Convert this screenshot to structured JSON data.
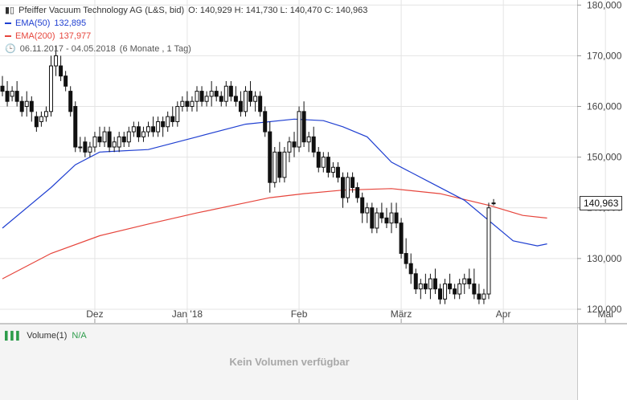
{
  "header": {
    "title": "Pfeiffer Vacuum Technology AG (L&S, bid)",
    "ohlc": "O: 140,929  H: 141,730  L: 140,470  C: 140,963",
    "ema50_label": "EMA(50)",
    "ema50_value": "132,895",
    "ema200_label": "EMA(200)",
    "ema200_value": "137,977",
    "range": "06.11.2017 - 04.05.2018",
    "period": "(6 Monate , 1 Tag)"
  },
  "volume": {
    "label": "Volume(1)",
    "value": "N/A",
    "empty_text": "Kein Volumen verfügbar"
  },
  "last_price": "140,963",
  "colors": {
    "candle": "#111111",
    "ema50": "#1f3fd1",
    "ema200": "#e6453c",
    "grid": "#e4e4e4",
    "axis": "#cccccc"
  },
  "chart_data": {
    "type": "candlestick",
    "y_ticks": [
      "180,000",
      "170,000",
      "160,000",
      "150,000",
      "140,000",
      "130,000",
      "120,000"
    ],
    "y_tick_values": [
      180,
      170,
      160,
      150,
      140,
      130,
      120
    ],
    "ylim": [
      117.3,
      181
    ],
    "x_tick_labels": [
      "Dez",
      "Jan '18",
      "Feb",
      "März",
      "Apr",
      "Mai"
    ],
    "x_tick_index": [
      19,
      38,
      61,
      82,
      103,
      124
    ],
    "candles": [
      [
        164,
        166,
        162,
        163
      ],
      [
        163,
        165,
        160,
        161
      ],
      [
        162,
        164,
        161,
        163
      ],
      [
        163,
        165,
        160,
        161
      ],
      [
        161,
        162,
        158,
        159
      ],
      [
        160,
        163,
        158,
        161
      ],
      [
        161,
        162,
        157,
        159
      ],
      [
        158,
        159,
        155,
        156
      ],
      [
        157,
        159,
        156,
        158
      ],
      [
        158,
        160,
        157,
        159
      ],
      [
        159,
        170,
        158,
        168
      ],
      [
        168,
        172,
        166,
        170
      ],
      [
        168,
        170,
        165,
        166
      ],
      [
        166,
        167,
        163,
        164
      ],
      [
        163,
        164,
        158,
        159
      ],
      [
        160,
        161,
        151,
        152
      ],
      [
        152,
        154,
        151,
        152
      ],
      [
        153,
        154,
        150,
        151
      ],
      [
        151,
        153,
        150,
        152
      ],
      [
        152,
        155,
        151,
        154
      ],
      [
        154,
        156,
        152,
        153
      ],
      [
        153,
        156,
        152,
        155
      ],
      [
        155,
        156,
        151,
        152
      ],
      [
        152,
        154,
        151,
        153
      ],
      [
        152,
        155,
        151,
        154
      ],
      [
        154,
        155,
        152,
        153
      ],
      [
        153,
        156,
        152,
        155
      ],
      [
        155,
        157,
        154,
        156
      ],
      [
        156,
        157,
        153,
        154
      ],
      [
        154,
        156,
        153,
        155
      ],
      [
        155,
        157,
        154,
        156
      ],
      [
        156,
        158,
        154,
        155
      ],
      [
        155,
        158,
        154,
        157
      ],
      [
        157,
        158,
        154,
        156
      ],
      [
        156,
        159,
        155,
        158
      ],
      [
        158,
        160,
        156,
        157
      ],
      [
        157,
        161,
        156,
        160
      ],
      [
        160,
        162,
        159,
        161
      ],
      [
        161,
        163,
        159,
        160
      ],
      [
        160,
        162,
        159,
        161
      ],
      [
        161,
        164,
        159,
        163
      ],
      [
        163,
        164,
        160,
        161
      ],
      [
        161,
        163,
        160,
        162
      ],
      [
        162,
        165,
        160,
        163
      ],
      [
        163,
        164,
        161,
        162
      ],
      [
        162,
        163,
        160,
        161
      ],
      [
        161,
        165,
        160,
        164
      ],
      [
        164,
        165,
        161,
        162
      ],
      [
        162,
        164,
        160,
        161
      ],
      [
        161,
        163,
        158,
        159
      ],
      [
        159,
        164,
        158,
        163
      ],
      [
        163,
        165,
        160,
        161
      ],
      [
        161,
        163,
        159,
        162
      ],
      [
        162,
        163,
        158,
        159
      ],
      [
        159,
        160,
        154,
        155
      ],
      [
        155,
        157,
        143,
        145
      ],
      [
        145,
        152,
        144,
        151
      ],
      [
        151,
        153,
        145,
        146
      ],
      [
        146,
        152,
        145,
        151
      ],
      [
        151,
        154,
        149,
        153
      ],
      [
        153,
        155,
        150,
        152
      ],
      [
        152,
        160,
        151,
        159
      ],
      [
        159,
        161,
        152,
        153
      ],
      [
        153,
        155,
        151,
        154
      ],
      [
        154,
        156,
        150,
        151
      ],
      [
        151,
        152,
        147,
        148
      ],
      [
        148,
        151,
        147,
        150
      ],
      [
        150,
        151,
        146,
        147
      ],
      [
        147,
        149,
        146,
        148
      ],
      [
        148,
        149,
        145,
        146
      ],
      [
        146,
        147,
        140,
        142
      ],
      [
        142,
        147,
        141,
        146
      ],
      [
        146,
        147,
        143,
        144
      ],
      [
        144,
        145,
        141,
        142
      ],
      [
        142,
        143,
        137,
        139
      ],
      [
        139,
        141,
        137,
        140
      ],
      [
        140,
        141,
        135,
        136
      ],
      [
        136,
        140,
        135,
        139
      ],
      [
        139,
        141,
        137,
        138
      ],
      [
        138,
        140,
        136,
        137
      ],
      [
        137,
        141,
        135,
        139
      ],
      [
        139,
        141,
        136,
        137
      ],
      [
        137,
        138,
        130,
        131
      ],
      [
        131,
        134,
        128,
        129
      ],
      [
        129,
        131,
        125,
        127
      ],
      [
        127,
        128,
        123,
        124
      ],
      [
        124,
        126,
        122,
        125
      ],
      [
        125,
        127,
        123,
        124
      ],
      [
        124,
        127,
        122,
        126
      ],
      [
        126,
        128,
        123,
        124
      ],
      [
        124,
        125,
        121,
        122
      ],
      [
        122,
        126,
        121,
        125
      ],
      [
        125,
        127,
        123,
        124
      ],
      [
        124,
        125,
        122,
        123
      ],
      [
        123,
        126,
        122,
        125
      ],
      [
        125,
        127,
        123,
        126
      ],
      [
        126,
        128,
        124,
        125
      ],
      [
        125,
        128,
        122,
        123
      ],
      [
        123,
        125,
        121,
        122
      ],
      [
        122,
        124,
        121,
        123
      ],
      [
        123,
        141,
        122,
        140
      ],
      [
        140.929,
        141.73,
        140.47,
        140.963
      ]
    ],
    "ema50": [
      [
        0,
        136
      ],
      [
        10,
        144
      ],
      [
        15,
        148.5
      ],
      [
        20,
        151
      ],
      [
        30,
        151.5
      ],
      [
        40,
        154
      ],
      [
        50,
        156.5
      ],
      [
        60,
        157.5
      ],
      [
        66,
        157.2
      ],
      [
        70,
        156
      ],
      [
        75,
        154
      ],
      [
        80,
        149
      ],
      [
        88,
        145
      ],
      [
        95,
        141.5
      ],
      [
        100,
        137.5
      ],
      [
        105,
        133.5
      ],
      [
        110,
        132.5
      ],
      [
        112,
        132.9
      ]
    ],
    "ema200": [
      [
        0,
        126
      ],
      [
        10,
        131
      ],
      [
        20,
        134.5
      ],
      [
        30,
        136.8
      ],
      [
        40,
        139
      ],
      [
        50,
        141
      ],
      [
        55,
        142
      ],
      [
        62,
        142.8
      ],
      [
        70,
        143.5
      ],
      [
        80,
        143.8
      ],
      [
        90,
        142.8
      ],
      [
        100,
        140.5
      ],
      [
        107,
        138.5
      ],
      [
        112,
        137.977
      ]
    ]
  }
}
